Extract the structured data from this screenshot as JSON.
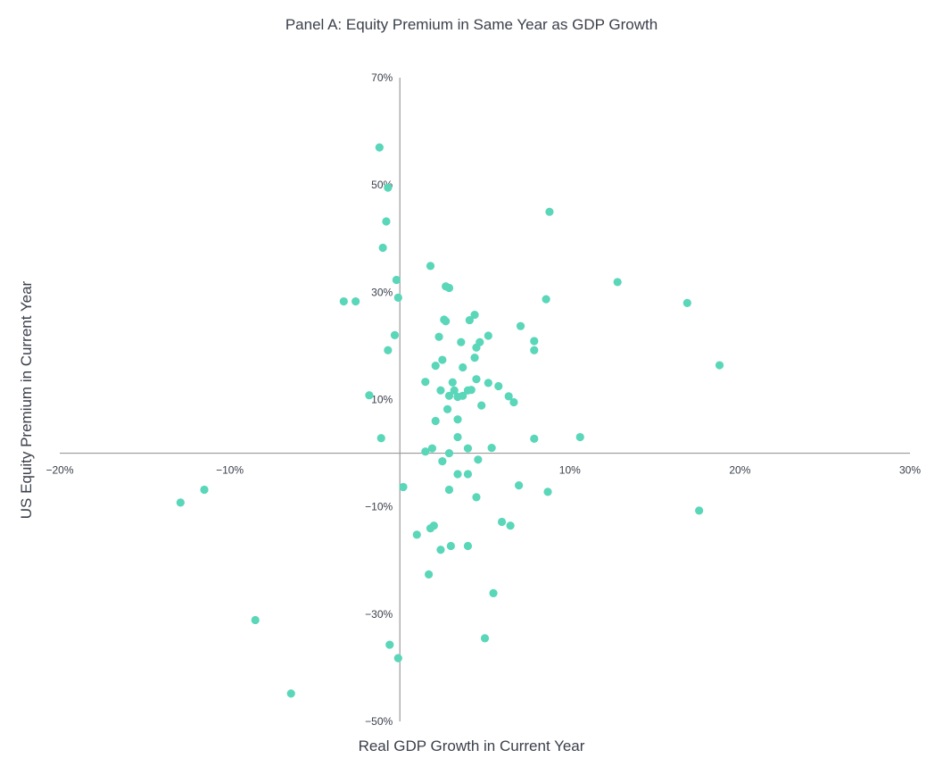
{
  "chart_data": {
    "type": "scatter",
    "title": "Panel A: Equity Premium in Same Year as GDP Growth",
    "xlabel": "Real GDP Growth in Current Year",
    "ylabel": "US Equity Premium in Current Year",
    "xlim": [
      -20,
      30
    ],
    "ylim": [
      -50,
      70
    ],
    "x_ticks": [
      -20,
      -10,
      10,
      20,
      30
    ],
    "y_ticks": [
      70,
      50,
      30,
      10,
      -10,
      -30,
      -50
    ],
    "x_tick_labels": [
      "−20%",
      "−10%",
      "10%",
      "20%",
      "30%"
    ],
    "y_tick_labels": [
      "70%",
      "50%",
      "30%",
      "10%",
      "−10%",
      "−30%",
      "−50%"
    ],
    "grid": false,
    "point_color": "#5ad6b8",
    "axis_color": "#9a9a9a",
    "points": [
      {
        "x": -1.2,
        "y": 57.0
      },
      {
        "x": -0.7,
        "y": 49.5
      },
      {
        "x": -0.8,
        "y": 43.2
      },
      {
        "x": -1.0,
        "y": 38.3
      },
      {
        "x": -0.2,
        "y": 32.3
      },
      {
        "x": -0.1,
        "y": 29.0
      },
      {
        "x": -3.3,
        "y": 28.3
      },
      {
        "x": -2.6,
        "y": 28.3
      },
      {
        "x": -0.3,
        "y": 22.0
      },
      {
        "x": -0.7,
        "y": 19.2
      },
      {
        "x": -1.8,
        "y": 10.8
      },
      {
        "x": -1.1,
        "y": 2.8
      },
      {
        "x": 0.2,
        "y": -6.3
      },
      {
        "x": -0.6,
        "y": -35.7
      },
      {
        "x": -0.1,
        "y": -38.2
      },
      {
        "x": -6.4,
        "y": -44.8
      },
      {
        "x": -8.5,
        "y": -31.1
      },
      {
        "x": -11.5,
        "y": -6.8
      },
      {
        "x": -12.9,
        "y": -9.2
      },
      {
        "x": 1.8,
        "y": 34.9
      },
      {
        "x": 2.7,
        "y": 31.1
      },
      {
        "x": 2.9,
        "y": 30.8
      },
      {
        "x": 4.4,
        "y": 25.8
      },
      {
        "x": 2.6,
        "y": 24.9
      },
      {
        "x": 2.7,
        "y": 24.6
      },
      {
        "x": 4.1,
        "y": 24.8
      },
      {
        "x": 2.3,
        "y": 21.7
      },
      {
        "x": 3.6,
        "y": 20.7
      },
      {
        "x": 4.7,
        "y": 20.7
      },
      {
        "x": 5.2,
        "y": 21.9
      },
      {
        "x": 4.5,
        "y": 19.7
      },
      {
        "x": 4.4,
        "y": 17.8
      },
      {
        "x": 2.5,
        "y": 17.4
      },
      {
        "x": 2.1,
        "y": 16.3
      },
      {
        "x": 3.7,
        "y": 16.0
      },
      {
        "x": 1.5,
        "y": 13.3
      },
      {
        "x": 3.1,
        "y": 13.2
      },
      {
        "x": 4.5,
        "y": 13.8
      },
      {
        "x": 5.2,
        "y": 13.1
      },
      {
        "x": 5.8,
        "y": 12.5
      },
      {
        "x": 2.4,
        "y": 11.7
      },
      {
        "x": 3.2,
        "y": 11.7
      },
      {
        "x": 4.0,
        "y": 11.7
      },
      {
        "x": 4.2,
        "y": 11.8
      },
      {
        "x": 2.9,
        "y": 10.7
      },
      {
        "x": 3.4,
        "y": 10.5
      },
      {
        "x": 3.7,
        "y": 10.7
      },
      {
        "x": 6.4,
        "y": 10.6
      },
      {
        "x": 6.7,
        "y": 9.5
      },
      {
        "x": 4.8,
        "y": 8.9
      },
      {
        "x": 2.8,
        "y": 8.2
      },
      {
        "x": 2.1,
        "y": 6.0
      },
      {
        "x": 3.4,
        "y": 6.3
      },
      {
        "x": 3.4,
        "y": 3.0
      },
      {
        "x": 1.9,
        "y": 0.9
      },
      {
        "x": 1.5,
        "y": 0.3
      },
      {
        "x": 2.9,
        "y": 0.0
      },
      {
        "x": 4.0,
        "y": 0.9
      },
      {
        "x": 5.4,
        "y": 1.0
      },
      {
        "x": 2.5,
        "y": -1.5
      },
      {
        "x": 4.6,
        "y": -1.2
      },
      {
        "x": 3.4,
        "y": -3.9
      },
      {
        "x": 4.0,
        "y": -3.9
      },
      {
        "x": 2.9,
        "y": -6.8
      },
      {
        "x": 4.5,
        "y": -8.2
      },
      {
        "x": 7.0,
        "y": -6.0
      },
      {
        "x": 8.7,
        "y": -7.2
      },
      {
        "x": 6.0,
        "y": -12.8
      },
      {
        "x": 6.5,
        "y": -13.5
      },
      {
        "x": 2.0,
        "y": -13.5
      },
      {
        "x": 1.8,
        "y": -14.0
      },
      {
        "x": 1.0,
        "y": -15.2
      },
      {
        "x": 3.0,
        "y": -17.3
      },
      {
        "x": 4.0,
        "y": -17.3
      },
      {
        "x": 2.4,
        "y": -18.0
      },
      {
        "x": 1.7,
        "y": -22.6
      },
      {
        "x": 5.5,
        "y": -26.1
      },
      {
        "x": 5.0,
        "y": -34.5
      },
      {
        "x": 7.1,
        "y": 23.7
      },
      {
        "x": 7.9,
        "y": 20.9
      },
      {
        "x": 7.9,
        "y": 19.2
      },
      {
        "x": 8.6,
        "y": 28.7
      },
      {
        "x": 8.8,
        "y": 45.0
      },
      {
        "x": 7.9,
        "y": 2.7
      },
      {
        "x": 10.6,
        "y": 3.0
      },
      {
        "x": 12.8,
        "y": 31.9
      },
      {
        "x": 16.9,
        "y": 28.0
      },
      {
        "x": 18.8,
        "y": 16.4
      },
      {
        "x": 17.6,
        "y": -10.7
      }
    ]
  }
}
